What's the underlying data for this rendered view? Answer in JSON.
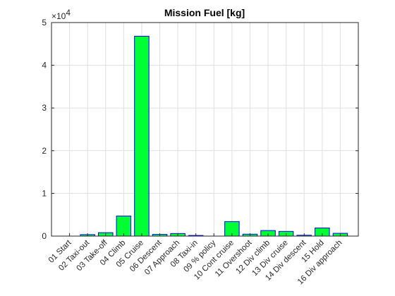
{
  "chart_data": {
    "type": "bar",
    "title": "Mission Fuel [kg]",
    "xlabel": "",
    "ylabel": "",
    "y_multiplier_label": "×10",
    "y_multiplier_exponent": "4",
    "ylim": [
      0,
      50000
    ],
    "y_ticks": [
      0,
      10000,
      20000,
      30000,
      40000,
      50000
    ],
    "y_tick_labels": [
      "0",
      "1",
      "2",
      "3",
      "4",
      "5"
    ],
    "grid": true,
    "bar_color": "#00ff33",
    "edge_color": "#0000ff",
    "categories": [
      "01 Start",
      "02 Taxi-out",
      "03 Take-off",
      "04 Climb",
      "05 Cruise",
      "06 Descent",
      "07 Approach",
      "08 Taxi-in",
      "09 % policy",
      "10 Cont cruise",
      "11 Overshoot",
      "12 Div climb",
      "13 Div cruise",
      "14 Div descent",
      "15 Hold",
      "16 Div approach"
    ],
    "values": [
      0,
      350,
      800,
      4700,
      46800,
      400,
      600,
      150,
      0,
      3400,
      450,
      1300,
      1100,
      200,
      1900,
      650
    ]
  }
}
